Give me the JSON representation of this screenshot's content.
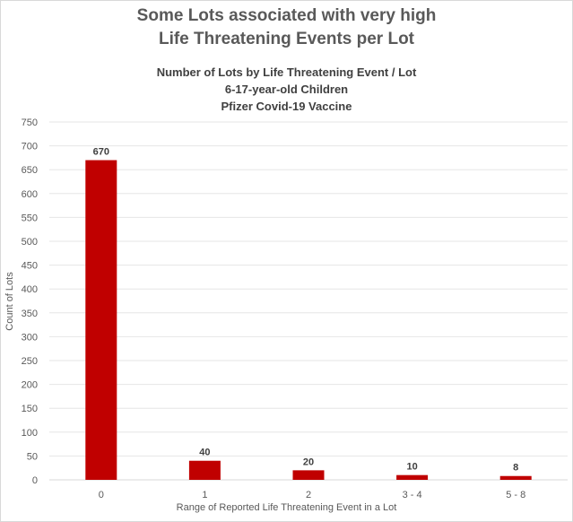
{
  "chart_data": {
    "type": "bar",
    "title": "Some Lots associated with very high",
    "title_line2": "Life Threatening Events per Lot",
    "subtitle_lines": [
      "Number of Lots by Life Threatening Event / Lot",
      "6-17-year-old Children",
      "Pfizer Covid-19 Vaccine"
    ],
    "categories": [
      "0",
      "1",
      "2",
      "3 - 4",
      "5 - 8"
    ],
    "values": [
      670,
      40,
      20,
      10,
      8
    ],
    "data_labels": [
      "670",
      "40",
      "20",
      "10",
      "8"
    ],
    "xlabel": "Range of Reported Life Threatening Event in a Lot",
    "ylabel": "Count of Lots",
    "ylim": [
      0,
      750
    ],
    "y_ticks": [
      0,
      50,
      100,
      150,
      200,
      250,
      300,
      350,
      400,
      450,
      500,
      550,
      600,
      650,
      700,
      750
    ],
    "grid": true,
    "bar_color": "#c00000"
  }
}
